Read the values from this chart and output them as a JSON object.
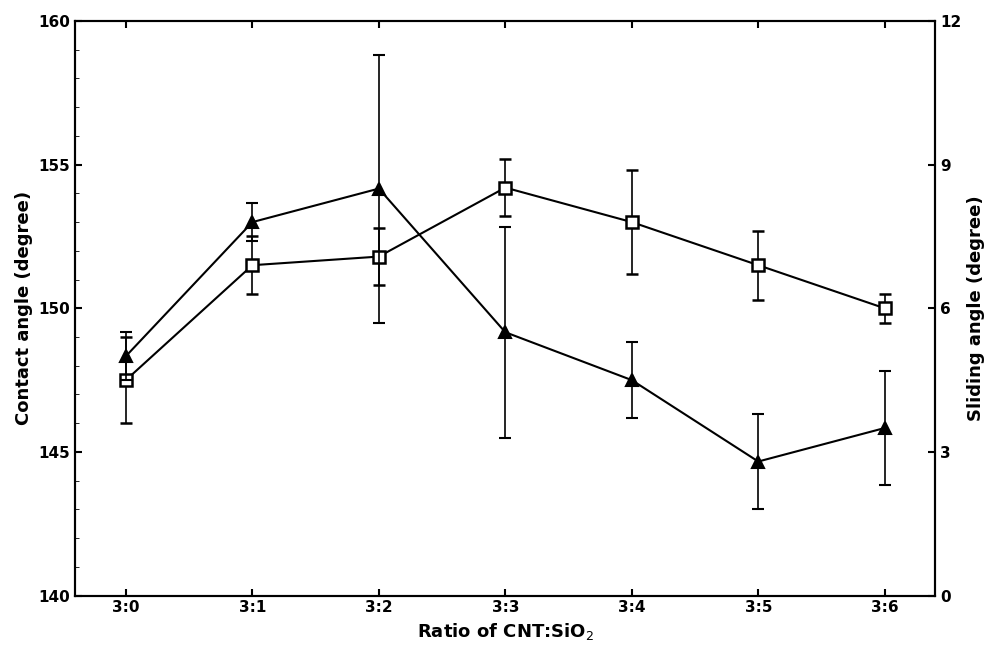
{
  "x_labels": [
    "3:0",
    "3:1",
    "3:2",
    "3:3",
    "3:4",
    "3:5",
    "3:6"
  ],
  "x_values": [
    0,
    1,
    2,
    3,
    4,
    5,
    6
  ],
  "contact_angle": [
    147.5,
    151.5,
    151.8,
    154.2,
    153.0,
    151.5,
    150.0
  ],
  "contact_angle_err": [
    1.5,
    1.0,
    1.0,
    1.0,
    1.8,
    1.2,
    0.5
  ],
  "sliding_angle": [
    5.0,
    7.8,
    8.5,
    5.5,
    4.5,
    2.8,
    3.5
  ],
  "sliding_angle_err": [
    0.5,
    0.4,
    2.8,
    2.2,
    0.8,
    1.0,
    1.2
  ],
  "ylabel_left": "Contact angle (degree)",
  "ylabel_right": "Sliding angle (degree)",
  "xlabel": "Ratio of CNT:SiO$_2$",
  "ylim_left": [
    140,
    160
  ],
  "ylim_right": [
    0,
    12
  ],
  "yticks_left": [
    140,
    145,
    150,
    155,
    160
  ],
  "yticks_right": [
    0,
    3,
    6,
    9,
    12
  ],
  "figsize": [
    10.0,
    6.57
  ],
  "dpi": 100
}
